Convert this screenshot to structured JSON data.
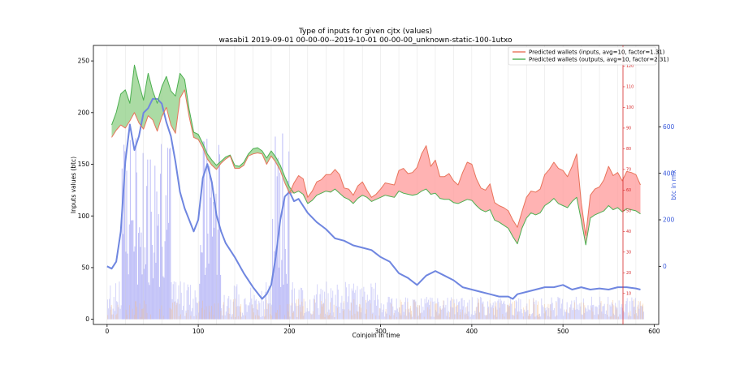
{
  "chart_data": {
    "type": "line",
    "title": "Type of inputs for given cjtx (values)",
    "subtitle": "wasabi1 2019-09-01 00-00-00--2019-10-01 00-00-00_unknown-static-100-1utxo",
    "xlabel": "Coinjoin in time",
    "ylabel": "Inputs values (btc)",
    "y2label": "btc in mix",
    "xlim": [
      -15,
      605
    ],
    "ylim": [
      -5,
      265
    ],
    "y2lim": [
      -250,
      950
    ],
    "xticks": [
      0,
      100,
      200,
      300,
      400,
      500,
      600
    ],
    "yticks": [
      0,
      50,
      100,
      150,
      200,
      250
    ],
    "y2ticks": [
      0,
      200,
      400,
      600
    ],
    "red_axis_ticks": [
      10,
      20,
      30,
      40,
      50,
      60,
      70,
      80,
      90,
      100,
      110,
      120
    ],
    "legend_position": "top-right",
    "colors": {
      "inputs_line": "#e8735a",
      "inputs_fill": "#ff9a9a",
      "outputs_line": "#4caf50",
      "outputs_fill": "#8fcf86",
      "btc_in_mix": "#6f86e0",
      "bars": "#a8a8f5",
      "red_axis": "#d62728",
      "blue_axis": "#3b5bdb"
    },
    "series": [
      {
        "name": "Predicted wallets (inputs, avg=10, factor=1.31)",
        "x": [
          5,
          10,
          15,
          20,
          25,
          30,
          35,
          40,
          45,
          50,
          55,
          60,
          65,
          70,
          75,
          80,
          85,
          90,
          95,
          100,
          105,
          110,
          115,
          120,
          125,
          130,
          135,
          140,
          145,
          150,
          155,
          160,
          165,
          170,
          175,
          180,
          185,
          190,
          195,
          200,
          205,
          210,
          215,
          220,
          225,
          230,
          235,
          240,
          245,
          250,
          255,
          260,
          265,
          270,
          275,
          280,
          285,
          290,
          295,
          300,
          305,
          310,
          315,
          320,
          325,
          330,
          335,
          340,
          345,
          350,
          355,
          360,
          365,
          370,
          375,
          380,
          385,
          390,
          395,
          400,
          405,
          410,
          415,
          420,
          425,
          430,
          435,
          440,
          445,
          450,
          455,
          460,
          465,
          470,
          475,
          480,
          485,
          490,
          495,
          500,
          505,
          510,
          515,
          520,
          525,
          530,
          535,
          540,
          545,
          550,
          555,
          560,
          565,
          570,
          575,
          580,
          585
        ],
        "values": [
          176,
          183,
          188,
          185,
          192,
          200,
          190,
          184,
          197,
          193,
          182,
          196,
          205,
          188,
          180,
          214,
          222,
          196,
          176,
          174,
          166,
          155,
          149,
          145,
          151,
          155,
          158,
          146,
          146,
          149,
          158,
          160,
          161,
          160,
          150,
          158,
          152,
          144,
          132,
          122,
          132,
          139,
          136,
          118,
          124,
          133,
          135,
          140,
          140,
          145,
          140,
          127,
          126,
          120,
          129,
          133,
          125,
          118,
          121,
          126,
          132,
          131,
          130,
          144,
          146,
          141,
          142,
          147,
          160,
          168,
          148,
          154,
          138,
          138,
          141,
          134,
          130,
          142,
          152,
          150,
          136,
          127,
          125,
          131,
          113,
          110,
          108,
          105,
          96,
          89,
          104,
          118,
          124,
          123,
          126,
          140,
          145,
          152,
          146,
          144,
          138,
          148,
          160,
          113,
          81,
          120,
          126,
          128,
          135,
          148,
          139,
          142,
          134,
          143,
          142,
          140,
          130
        ],
        "upper": [
          176,
          183,
          188,
          185,
          192,
          200,
          190,
          184,
          197,
          193,
          182,
          196,
          205,
          188,
          180,
          214,
          222,
          196,
          176,
          174,
          166,
          155,
          149,
          145,
          151,
          155,
          158,
          146,
          146,
          149,
          158,
          160,
          161,
          160,
          150,
          158,
          152,
          144,
          132,
          122,
          132,
          139,
          136,
          118,
          124,
          133,
          135,
          140,
          140,
          145,
          140,
          127,
          126,
          120,
          129,
          133,
          125,
          118,
          121,
          126,
          132,
          131,
          130,
          144,
          146,
          141,
          142,
          147,
          160,
          168,
          148,
          154,
          138,
          138,
          141,
          134,
          130,
          142,
          152,
          150,
          136,
          127,
          125,
          131,
          113,
          110,
          108,
          105,
          96,
          89,
          104,
          118,
          124,
          123,
          126,
          140,
          145,
          152,
          146,
          144,
          138,
          148,
          160,
          113,
          81,
          120,
          126,
          128,
          135,
          148,
          139,
          142,
          134,
          143,
          142,
          140,
          130
        ]
      },
      {
        "name": "Predicted wallets (outputs, avg=10, factor=2.31)",
        "x": [
          5,
          10,
          15,
          20,
          25,
          30,
          35,
          40,
          45,
          50,
          55,
          60,
          65,
          70,
          75,
          80,
          85,
          90,
          95,
          100,
          105,
          110,
          115,
          120,
          125,
          130,
          135,
          140,
          145,
          150,
          155,
          160,
          165,
          170,
          175,
          180,
          185,
          190,
          195,
          200,
          205,
          210,
          215,
          220,
          225,
          230,
          235,
          240,
          245,
          250,
          255,
          260,
          265,
          270,
          275,
          280,
          285,
          290,
          295,
          300,
          305,
          310,
          315,
          320,
          325,
          330,
          335,
          340,
          345,
          350,
          355,
          360,
          365,
          370,
          375,
          380,
          385,
          390,
          395,
          400,
          405,
          410,
          415,
          420,
          425,
          430,
          435,
          440,
          445,
          450,
          455,
          460,
          465,
          470,
          475,
          480,
          485,
          490,
          495,
          500,
          505,
          510,
          515,
          520,
          525,
          530,
          535,
          540,
          545,
          550,
          555,
          560,
          565,
          570,
          575,
          580,
          585
        ],
        "values": [
          188,
          200,
          218,
          222,
          209,
          246,
          228,
          212,
          238,
          221,
          209,
          225,
          235,
          221,
          216,
          238,
          232,
          203,
          181,
          179,
          170,
          160,
          154,
          149,
          153,
          157,
          159,
          149,
          148,
          152,
          160,
          165,
          166,
          163,
          156,
          163,
          157,
          149,
          138,
          128,
          122,
          124,
          121,
          112,
          115,
          120,
          122,
          124,
          123,
          126,
          122,
          118,
          116,
          112,
          117,
          120,
          118,
          114,
          116,
          118,
          120,
          119,
          118,
          124,
          122,
          121,
          120,
          121,
          124,
          126,
          121,
          122,
          117,
          116,
          116,
          113,
          112,
          114,
          116,
          115,
          110,
          106,
          104,
          106,
          96,
          94,
          91,
          88,
          80,
          73,
          88,
          98,
          103,
          101,
          103,
          110,
          113,
          117,
          112,
          110,
          108,
          114,
          118,
          96,
          72,
          98,
          101,
          103,
          105,
          110,
          106,
          108,
          104,
          107,
          106,
          105,
          102
        ],
        "lower": [
          176,
          183,
          188,
          185,
          192,
          200,
          190,
          184,
          197,
          193,
          182,
          196,
          205,
          188,
          180,
          214,
          222,
          196,
          176,
          174,
          166,
          155,
          149,
          145,
          151,
          155,
          158,
          146,
          146,
          149,
          158,
          160,
          161,
          160,
          150,
          158,
          152,
          144,
          132,
          122,
          122,
          124,
          121,
          112,
          115,
          120,
          122,
          124,
          123,
          126,
          122,
          118,
          116,
          112,
          117,
          120,
          118,
          114,
          116,
          118,
          120,
          119,
          118,
          124,
          122,
          121,
          120,
          121,
          124,
          126,
          121,
          122,
          117,
          116,
          116,
          113,
          112,
          114,
          116,
          115,
          110,
          106,
          104,
          106,
          96,
          94,
          91,
          88,
          80,
          73,
          88,
          98,
          103,
          101,
          103,
          110,
          113,
          117,
          112,
          110,
          108,
          114,
          118,
          96,
          72,
          98,
          101,
          103,
          105,
          110,
          106,
          108,
          104,
          107,
          106,
          105,
          102
        ]
      },
      {
        "name": "btc in mix",
        "axis": "right",
        "x": [
          0,
          5,
          10,
          15,
          20,
          25,
          30,
          35,
          40,
          45,
          50,
          55,
          60,
          65,
          70,
          75,
          80,
          85,
          90,
          95,
          100,
          105,
          110,
          115,
          120,
          125,
          130,
          140,
          150,
          160,
          170,
          175,
          180,
          185,
          190,
          195,
          200,
          205,
          210,
          220,
          230,
          240,
          250,
          260,
          270,
          280,
          290,
          300,
          310,
          320,
          330,
          340,
          350,
          360,
          370,
          380,
          390,
          400,
          410,
          420,
          430,
          440,
          445,
          450,
          460,
          470,
          480,
          490,
          500,
          510,
          520,
          530,
          540,
          550,
          560,
          570,
          580,
          585
        ],
        "values": [
          0,
          -10,
          20,
          150,
          450,
          610,
          500,
          560,
          660,
          680,
          720,
          720,
          700,
          620,
          560,
          450,
          320,
          250,
          200,
          150,
          200,
          380,
          440,
          360,
          220,
          150,
          100,
          40,
          -30,
          -90,
          -140,
          -120,
          -80,
          40,
          200,
          300,
          320,
          280,
          290,
          230,
          190,
          160,
          120,
          110,
          90,
          80,
          70,
          40,
          20,
          -30,
          -50,
          -80,
          -40,
          -20,
          -40,
          -60,
          -90,
          -100,
          -110,
          -120,
          -130,
          -130,
          -140,
          -120,
          -110,
          -100,
          -90,
          -90,
          -80,
          -100,
          -90,
          -100,
          -95,
          -100,
          -90,
          -90,
          -95,
          -100
        ]
      }
    ]
  }
}
